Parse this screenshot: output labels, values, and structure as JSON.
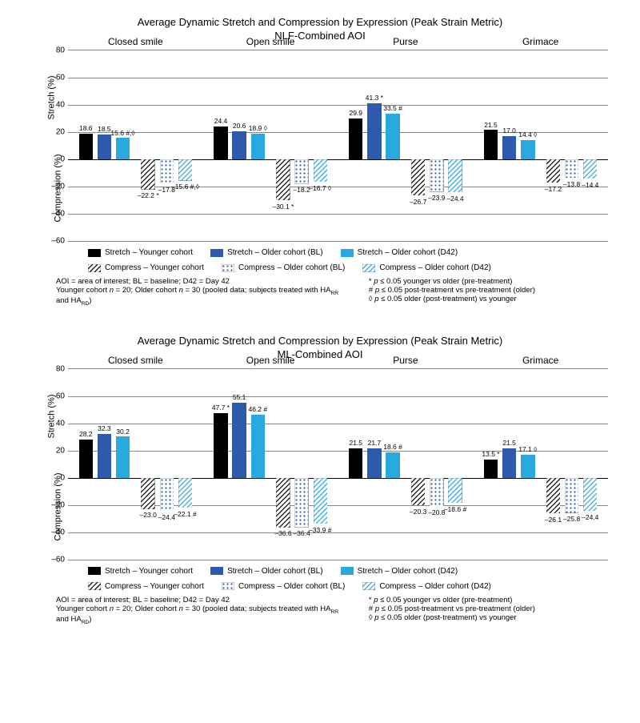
{
  "common": {
    "title_line1": "Average Dynamic Stretch and Compression by Expression (Peak Strain Metric)",
    "y_label_top": "Stretch (%)",
    "y_label_bot": "Compression (%)",
    "ylim": [
      -60,
      80
    ],
    "yticks": [
      -60,
      -40,
      -20,
      0,
      20,
      40,
      60,
      80
    ],
    "ytick_labels": [
      "–60",
      "–40",
      "–20",
      "0",
      "20",
      "40",
      "60",
      "80"
    ],
    "group_labels": [
      "Closed smile",
      "Open smile",
      "Purse",
      "Grimace"
    ],
    "series": [
      {
        "key": "s_y",
        "label": "Stretch – Younger cohort",
        "fill": "#000000",
        "pattern": null
      },
      {
        "key": "s_bl",
        "label": "Stretch – Older cohort (BL)",
        "fill": "#2e5aac",
        "pattern": null
      },
      {
        "key": "s_d",
        "label": "Stretch – Older cohort (D42)",
        "fill": "#2aa8e0",
        "pattern": null
      },
      {
        "key": "c_y",
        "label": "Compress – Younger cohort",
        "fill": null,
        "pattern": "hatch-black"
      },
      {
        "key": "c_bl",
        "label": "Compress – Older cohort (BL)",
        "fill": null,
        "pattern": "dots-blue"
      },
      {
        "key": "c_d",
        "label": "Compress – Older cohort (D42)",
        "fill": null,
        "pattern": "hatch-cyan"
      }
    ],
    "bar_gap": 0.04,
    "bar_cluster_gap": 0.1,
    "footnote_left_1_pre": "AOI = area of interest; BL = baseline; D42 = Day 42",
    "footnote_left_2_a": "Younger cohort ",
    "footnote_left_2_b": " = 20; Older cohort ",
    "footnote_left_2_c": " = 30 (pooled data; subjects treated with HA",
    "footnote_left_2_d": " and HA",
    "footnote_left_2_e": ")",
    "footnote_left_2_sub1": "RR",
    "footnote_left_2_sub2": "RD",
    "footnote_left_2_n": "n",
    "sig_star": "* p ≤ 0.05 younger vs older (pre-treatment)",
    "sig_hash": "# p ≤ 0.05 post-treatment vs pre-treatment (older)",
    "sig_dia": "◊ p ≤ 0.05 older (post-treatment) vs younger",
    "italic_p": "p"
  },
  "charts": [
    {
      "subtitle": "NLF-Combined AOI",
      "groups": [
        {
          "bars": [
            {
              "series": "s_y",
              "v": 18.6,
              "lbl": "18.6"
            },
            {
              "series": "s_bl",
              "v": 18.5,
              "lbl": "18.5"
            },
            {
              "series": "s_d",
              "v": 15.6,
              "lbl": "15.6 #,◊"
            },
            {
              "series": "c_y",
              "v": -22.2,
              "lbl": "–22.2 *"
            },
            {
              "series": "c_bl",
              "v": -17.8,
              "lbl": "–17.8"
            },
            {
              "series": "c_d",
              "v": -15.6,
              "lbl": "–15.6 #,◊"
            }
          ]
        },
        {
          "bars": [
            {
              "series": "s_y",
              "v": 24.4,
              "lbl": "24.4"
            },
            {
              "series": "s_bl",
              "v": 20.6,
              "lbl": "20.6"
            },
            {
              "series": "s_d",
              "v": 18.9,
              "lbl": "18.9 ◊"
            },
            {
              "series": "c_y",
              "v": -30.1,
              "lbl": "–30.1 *"
            },
            {
              "series": "c_bl",
              "v": -18.2,
              "lbl": "–18.2"
            },
            {
              "series": "c_d",
              "v": -16.7,
              "lbl": "–16.7 ◊"
            }
          ]
        },
        {
          "bars": [
            {
              "series": "s_y",
              "v": 29.9,
              "lbl": "29.9"
            },
            {
              "series": "s_bl",
              "v": 41.3,
              "lbl": "41.3 *"
            },
            {
              "series": "s_d",
              "v": 33.5,
              "lbl": "33.5 #"
            },
            {
              "series": "c_y",
              "v": -26.7,
              "lbl": "–26.7"
            },
            {
              "series": "c_bl",
              "v": -23.9,
              "lbl": "–23.9"
            },
            {
              "series": "c_d",
              "v": -24.4,
              "lbl": "–24.4"
            }
          ]
        },
        {
          "bars": [
            {
              "series": "s_y",
              "v": 21.5,
              "lbl": "21.5"
            },
            {
              "series": "s_bl",
              "v": 17.0,
              "lbl": "17.0"
            },
            {
              "series": "s_d",
              "v": 14.4,
              "lbl": "14.4 ◊"
            },
            {
              "series": "c_y",
              "v": -17.2,
              "lbl": "–17.2"
            },
            {
              "series": "c_bl",
              "v": -13.8,
              "lbl": "–13.8"
            },
            {
              "series": "c_d",
              "v": -14.4,
              "lbl": "–14.4"
            }
          ]
        }
      ]
    },
    {
      "subtitle": "ML-Combined AOI",
      "groups": [
        {
          "bars": [
            {
              "series": "s_y",
              "v": 28.2,
              "lbl": "28.2"
            },
            {
              "series": "s_bl",
              "v": 32.3,
              "lbl": "32.3"
            },
            {
              "series": "s_d",
              "v": 30.2,
              "lbl": "30.2"
            },
            {
              "series": "c_y",
              "v": -23.0,
              "lbl": "–23.0"
            },
            {
              "series": "c_bl",
              "v": -24.4,
              "lbl": "–24.4"
            },
            {
              "series": "c_d",
              "v": -22.1,
              "lbl": "–22.1 #"
            }
          ]
        },
        {
          "bars": [
            {
              "series": "s_y",
              "v": 47.7,
              "lbl": "47.7 *"
            },
            {
              "series": "s_bl",
              "v": 55.1,
              "lbl": "55.1"
            },
            {
              "series": "s_d",
              "v": 46.2,
              "lbl": "46.2 #"
            },
            {
              "series": "c_y",
              "v": -36.6,
              "lbl": "–36.6"
            },
            {
              "series": "c_bl",
              "v": -36.4,
              "lbl": "–36.4"
            },
            {
              "series": "c_d",
              "v": -33.9,
              "lbl": "–33.9 #"
            }
          ]
        },
        {
          "bars": [
            {
              "series": "s_y",
              "v": 21.5,
              "lbl": "21.5"
            },
            {
              "series": "s_bl",
              "v": 21.7,
              "lbl": "21.7"
            },
            {
              "series": "s_d",
              "v": 18.6,
              "lbl": "18.6 #"
            },
            {
              "series": "c_y",
              "v": -20.3,
              "lbl": "–20.3"
            },
            {
              "series": "c_bl",
              "v": -20.8,
              "lbl": "–20.8"
            },
            {
              "series": "c_d",
              "v": -18.6,
              "lbl": "–18.6 #"
            }
          ]
        },
        {
          "bars": [
            {
              "series": "s_y",
              "v": 13.5,
              "lbl": "13.5 *"
            },
            {
              "series": "s_bl",
              "v": 21.5,
              "lbl": "21.5"
            },
            {
              "series": "s_d",
              "v": 17.1,
              "lbl": "17.1 ◊"
            },
            {
              "series": "c_y",
              "v": -26.1,
              "lbl": "–26.1"
            },
            {
              "series": "c_bl",
              "v": -25.8,
              "lbl": "–25.8"
            },
            {
              "series": "c_d",
              "v": -24.4,
              "lbl": "–24.4"
            }
          ]
        }
      ]
    }
  ]
}
